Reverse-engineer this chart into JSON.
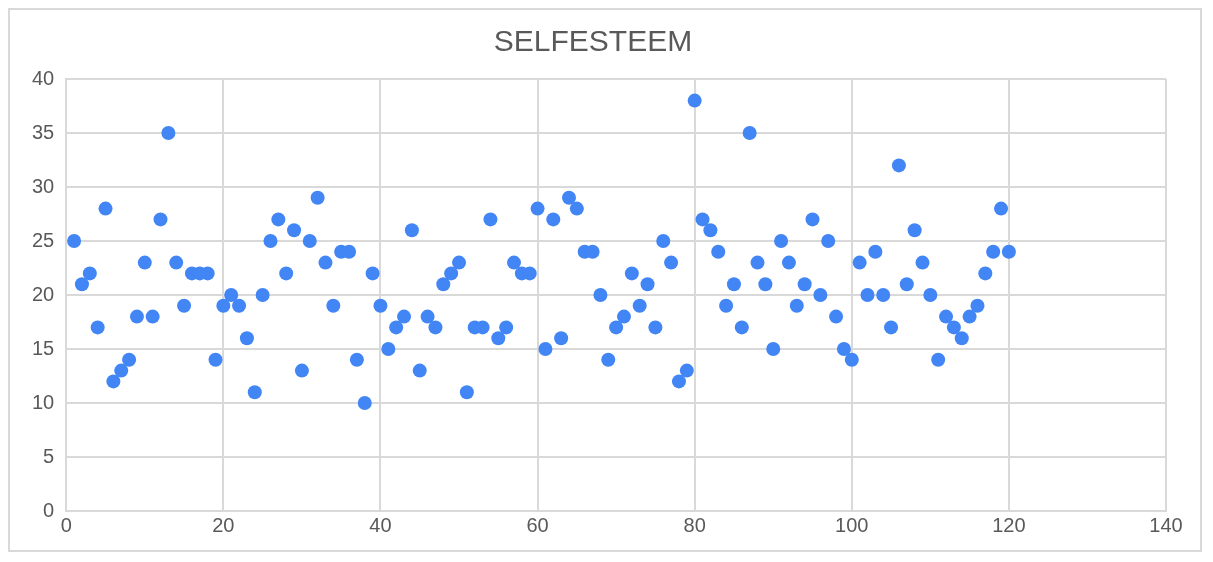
{
  "chart_data": {
    "type": "scatter",
    "title": "SELFESTEEM",
    "x": [
      1,
      2,
      3,
      4,
      5,
      6,
      7,
      8,
      9,
      10,
      11,
      12,
      13,
      14,
      15,
      16,
      17,
      18,
      19,
      20,
      21,
      22,
      23,
      24,
      25,
      26,
      27,
      28,
      29,
      30,
      31,
      32,
      33,
      34,
      35,
      36,
      37,
      38,
      39,
      40,
      41,
      42,
      43,
      44,
      45,
      46,
      47,
      48,
      49,
      50,
      51,
      52,
      53,
      54,
      55,
      56,
      57,
      58,
      59,
      60,
      61,
      62,
      63,
      64,
      65,
      66,
      67,
      68,
      69,
      70,
      71,
      72,
      73,
      74,
      75,
      76,
      77,
      78,
      79,
      80,
      81,
      82,
      83,
      84,
      85,
      86,
      87,
      88,
      89,
      90,
      91,
      92,
      93,
      94,
      95,
      96,
      97,
      98,
      99,
      100,
      101,
      102,
      103,
      104,
      105,
      106,
      107,
      108,
      109,
      110,
      111,
      112,
      113,
      114,
      115,
      116,
      117,
      118,
      119,
      120
    ],
    "series": [
      {
        "color": "#4285f4",
        "values": [
          25,
          21,
          22,
          17,
          28,
          12,
          13,
          14,
          18,
          23,
          18,
          27,
          35,
          23,
          19,
          22,
          22,
          22,
          14,
          19,
          20,
          19,
          16,
          11,
          20,
          25,
          27,
          22,
          26,
          13,
          25,
          29,
          23,
          19,
          24,
          24,
          14,
          10,
          22,
          19,
          15,
          17,
          18,
          26,
          13,
          18,
          17,
          21,
          22,
          23,
          11,
          17,
          17,
          27,
          16,
          17,
          23,
          22,
          22,
          28,
          15,
          27,
          16,
          29,
          28,
          24,
          24,
          20,
          14,
          17,
          18,
          22,
          19,
          21,
          17,
          25,
          23,
          12,
          13,
          38,
          27,
          26,
          24,
          19,
          21,
          17,
          35,
          23,
          21,
          15,
          25,
          23,
          19,
          21,
          27,
          20,
          25,
          18,
          15,
          14,
          23,
          20,
          24,
          20,
          17,
          32,
          21,
          26,
          23,
          20,
          14,
          18,
          17,
          16,
          18,
          19,
          22,
          24,
          28,
          24
        ]
      }
    ],
    "xlim": [
      0,
      140
    ],
    "xticks": [
      0,
      20,
      40,
      60,
      80,
      100,
      120,
      140
    ],
    "ylim": [
      0,
      40
    ],
    "yticks": [
      0,
      5,
      10,
      15,
      20,
      25,
      30,
      35,
      40
    ],
    "grid": true,
    "marker": "circle"
  }
}
